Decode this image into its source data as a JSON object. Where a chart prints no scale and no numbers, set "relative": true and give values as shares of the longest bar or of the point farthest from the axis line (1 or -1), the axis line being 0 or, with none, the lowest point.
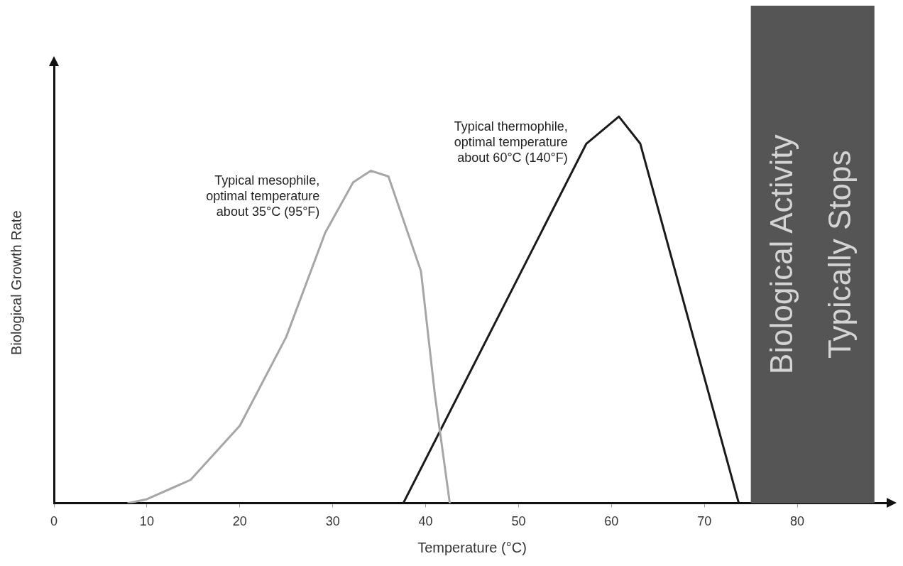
{
  "chart_data": {
    "type": "line",
    "relative": true,
    "xlabel": "Temperature (°C)",
    "ylabel": "Biological Growth Rate",
    "xlim": [
      0,
      90
    ],
    "xticks": [
      0,
      10,
      20,
      30,
      40,
      50,
      60,
      70,
      80
    ],
    "grid": false,
    "legend": false,
    "marker": "none",
    "line_style": "solid",
    "series": [
      {
        "name": "Typical mesophile,\noptimal temperature\nabout 35°C (95°F)",
        "color": "#a6a6a6",
        "x": [
          8,
          10,
          14.7,
          20,
          25,
          29.2,
          32.2,
          34.1,
          36,
          39.5,
          41,
          42.6
        ],
        "values": [
          0,
          0.01,
          0.06,
          0.2,
          0.43,
          0.7,
          0.83,
          0.86,
          0.845,
          0.6,
          0.28,
          0
        ]
      },
      {
        "name": "Typical thermophile,\noptimal temperature\nabout 60°C (140°F)",
        "color": "#1a1a1a",
        "x": [
          37.6,
          57.3,
          60.8,
          63.1,
          73.7
        ],
        "values": [
          0,
          0.93,
          1,
          0.93,
          0
        ]
      }
    ],
    "bands": [
      {
        "axis": "x",
        "from": 75,
        "to": 88.3,
        "label": "Biological Activity Typically Stops",
        "color": "#555555"
      }
    ]
  }
}
